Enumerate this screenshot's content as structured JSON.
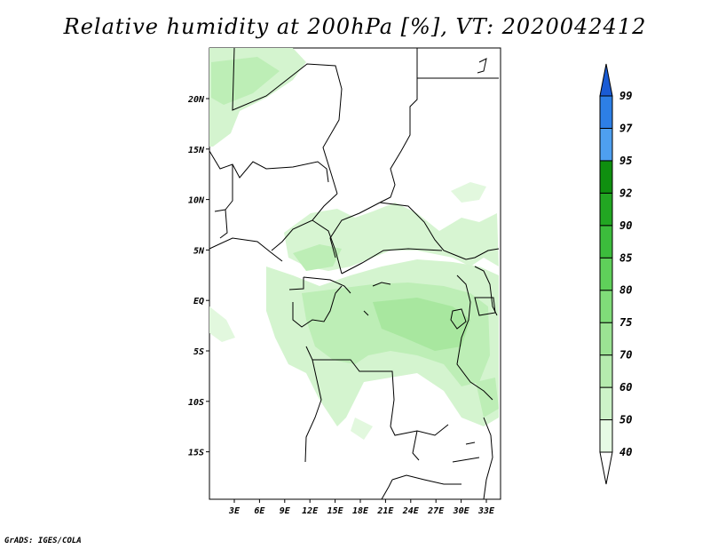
{
  "title": "Relative humidity at 200hPa [%], VT: 2020042412",
  "credit": "GrADS: IGES/COLA",
  "map": {
    "lat_labels": [
      "20N",
      "15N",
      "10N",
      "5N",
      "EQ",
      "5S",
      "10S",
      "15S"
    ],
    "lon_labels": [
      "3E",
      "6E",
      "9E",
      "12E",
      "15E",
      "18E",
      "21E",
      "24E",
      "27E",
      "30E",
      "33E"
    ]
  },
  "colorbar": {
    "levels": [
      "40",
      "50",
      "60",
      "70",
      "75",
      "80",
      "85",
      "90",
      "92",
      "95",
      "97",
      "99"
    ],
    "colors": [
      "#ffffff",
      "#e6fbe4",
      "#cdf3c8",
      "#b5ebae",
      "#9be393",
      "#80dc79",
      "#5fd05a",
      "#3cbc3c",
      "#22a622",
      "#0f8f0f",
      "#4e9ff0",
      "#2d7fe6",
      "#1a5bd4"
    ]
  }
}
